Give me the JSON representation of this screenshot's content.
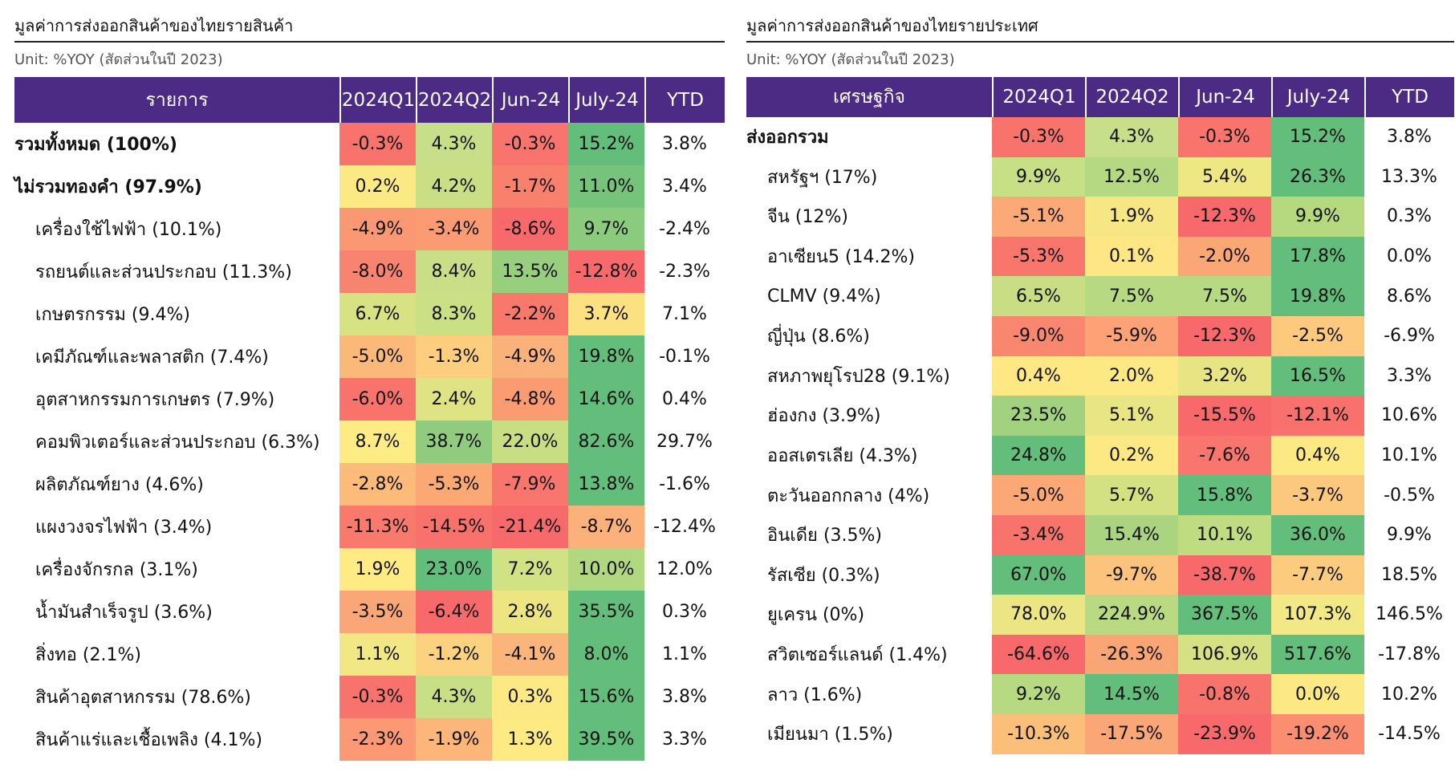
{
  "left": {
    "title": "มูลค่าการส่งออกสินค้าของไทยรายสินค้า",
    "unit": "Unit: %YOY (สัดส่วนในปี 2023)",
    "headers": [
      "รายการ",
      "2024Q1",
      "2024Q2",
      "Jun-24",
      "July-24",
      "YTD"
    ],
    "rows": [
      {
        "label": "รวมทั้งหมด (100%)",
        "bold": true,
        "values": [
          "-0.3%",
          "4.3%",
          "-0.3%",
          "15.2%"
        ],
        "ytd": "3.8%"
      },
      {
        "label": "ไม่รวมทองคำ (97.9%)",
        "bold": true,
        "values": [
          "0.2%",
          "4.2%",
          "-1.7%",
          "11.0%"
        ],
        "ytd": "3.4%"
      },
      {
        "label": "เครื่องใช้ไฟฟ้า (10.1%)",
        "values": [
          "-4.9%",
          "-3.4%",
          "-8.6%",
          "9.7%"
        ],
        "ytd": "-2.4%"
      },
      {
        "label": "รถยนต์และส่วนประกอบ (11.3%)",
        "values": [
          "-8.0%",
          "8.4%",
          "13.5%",
          "-12.8%"
        ],
        "ytd": "-2.3%"
      },
      {
        "label": "เกษตรกรรม (9.4%)",
        "values": [
          "6.7%",
          "8.3%",
          "-2.2%",
          "3.7%"
        ],
        "ytd": "7.1%"
      },
      {
        "label": "เคมีภัณฑ์และพลาสติก (7.4%)",
        "values": [
          "-5.0%",
          "-1.3%",
          "-4.9%",
          "19.8%"
        ],
        "ytd": "-0.1%"
      },
      {
        "label": "อุตสาหกรรมการเกษตร (7.9%)",
        "values": [
          "-6.0%",
          "2.4%",
          "-4.8%",
          "14.6%"
        ],
        "ytd": "0.4%"
      },
      {
        "label": "คอมพิวเตอร์และส่วนประกอบ (6.3%)",
        "values": [
          "8.7%",
          "38.7%",
          "22.0%",
          "82.6%"
        ],
        "ytd": "29.7%"
      },
      {
        "label": "ผลิตภัณฑ์ยาง (4.6%)",
        "values": [
          "-2.8%",
          "-5.3%",
          "-7.9%",
          "13.8%"
        ],
        "ytd": "-1.6%"
      },
      {
        "label": "แผงวงจรไฟฟ้า (3.4%)",
        "values": [
          "-11.3%",
          "-14.5%",
          "-21.4%",
          "-8.7%"
        ],
        "ytd": "-12.4%"
      },
      {
        "label": "เครื่องจักรกล (3.1%)",
        "values": [
          "1.9%",
          "23.0%",
          "7.2%",
          "10.0%"
        ],
        "ytd": "12.0%"
      },
      {
        "label": "น้ำมันสำเร็จรูป (3.6%)",
        "values": [
          "-3.5%",
          "-6.4%",
          "2.8%",
          "35.5%"
        ],
        "ytd": "0.3%"
      },
      {
        "label": "สิ่งทอ (2.1%)",
        "values": [
          "1.1%",
          "-1.2%",
          "-4.1%",
          "8.0%"
        ],
        "ytd": "1.1%"
      },
      {
        "label": "สินค้าอุตสาหกรรม (78.6%)",
        "values": [
          "-0.3%",
          "4.3%",
          "0.3%",
          "15.6%"
        ],
        "ytd": "3.8%"
      },
      {
        "label": "สินค้าแร่และเชื้อเพลิง (4.1%)",
        "values": [
          "-2.3%",
          "-1.9%",
          "1.3%",
          "39.5%"
        ],
        "ytd": "3.3%"
      }
    ],
    "colors": [
      [
        "#f8736b",
        "#c6df88",
        "#f8746c",
        "#64be7b"
      ],
      [
        "#fbe983",
        "#cadf85",
        "#f8806d",
        "#76c47c"
      ],
      [
        "#f99873",
        "#fb9b74",
        "#f8696b",
        "#8bcb7e"
      ],
      [
        "#f8836e",
        "#c9de86",
        "#98cf7f",
        "#f8696b"
      ],
      [
        "#d7e282",
        "#cbdf85",
        "#f8796c",
        "#fbe17f"
      ],
      [
        "#fbb979",
        "#fcce7e",
        "#fbb27a",
        "#63be7b"
      ],
      [
        "#f8736b",
        "#e0e383",
        "#fa9b72",
        "#63be7b"
      ],
      [
        "#fdec84",
        "#91cc7e",
        "#c9de83",
        "#63be7b"
      ],
      [
        "#fcbb79",
        "#fca874",
        "#f8766d",
        "#63be7b"
      ],
      [
        "#f9796c",
        "#f8716b",
        "#f8696b",
        "#fcb07a"
      ],
      [
        "#feeb84",
        "#63be7b",
        "#d1e284",
        "#b1d781"
      ],
      [
        "#fba676",
        "#f8696b",
        "#ece582",
        "#63be7b"
      ],
      [
        "#f1e784",
        "#fcd17f",
        "#fbb479",
        "#63be7b"
      ],
      [
        "#f8736b",
        "#c8df85",
        "#fce983",
        "#63be7b"
      ],
      [
        "#fc9974",
        "#fdb67a",
        "#feea83",
        "#63be7b"
      ]
    ]
  },
  "right": {
    "title": "มูลค่าการส่งออกสินค้าของไทยรายประเทศ",
    "unit": "Unit: %YOY (สัดส่วนในปี 2023)",
    "headers": [
      "เศรษฐกิจ",
      "2024Q1",
      "2024Q2",
      "Jun-24",
      "July-24",
      "YTD"
    ],
    "rows": [
      {
        "label": "ส่งออกรวม",
        "bold": true,
        "values": [
          "-0.3%",
          "4.3%",
          "-0.3%",
          "15.2%"
        ],
        "ytd": "3.8%"
      },
      {
        "label": "สหรัฐฯ (17%)",
        "values": [
          "9.9%",
          "12.5%",
          "5.4%",
          "26.3%"
        ],
        "ytd": "13.3%"
      },
      {
        "label": "จีน (12%)",
        "values": [
          "-5.1%",
          "1.9%",
          "-12.3%",
          "9.9%"
        ],
        "ytd": "0.3%"
      },
      {
        "label": "อาเซียน5 (14.2%)",
        "values": [
          "-5.3%",
          "0.1%",
          "-2.0%",
          "17.8%"
        ],
        "ytd": "0.0%"
      },
      {
        "label": "CLMV (9.4%)",
        "values": [
          "6.5%",
          "7.5%",
          "7.5%",
          "19.8%"
        ],
        "ytd": "8.6%"
      },
      {
        "label": "ญี่ปุ่น (8.6%)",
        "values": [
          "-9.0%",
          "-5.9%",
          "-12.3%",
          "-2.5%"
        ],
        "ytd": "-6.9%"
      },
      {
        "label": "สหภาพยุโรป28 (9.1%)",
        "values": [
          "0.4%",
          "2.0%",
          "3.2%",
          "16.5%"
        ],
        "ytd": "3.3%"
      },
      {
        "label": "ฮ่องกง (3.9%)",
        "values": [
          "23.5%",
          "5.1%",
          "-15.5%",
          "-12.1%"
        ],
        "ytd": "10.6%"
      },
      {
        "label": "ออสเตรเลีย (4.3%)",
        "values": [
          "24.8%",
          "0.2%",
          "-7.6%",
          "0.4%"
        ],
        "ytd": "10.1%"
      },
      {
        "label": "ตะวันออกกลาง (4%)",
        "values": [
          "-5.0%",
          "5.7%",
          "15.8%",
          "-3.7%"
        ],
        "ytd": "-0.5%"
      },
      {
        "label": "อินเดีย (3.5%)",
        "values": [
          "-3.4%",
          "15.4%",
          "10.1%",
          "36.0%"
        ],
        "ytd": "9.9%"
      },
      {
        "label": "รัสเซีย (0.3%)",
        "values": [
          "67.0%",
          "-9.7%",
          "-38.7%",
          "-7.7%"
        ],
        "ytd": "18.5%"
      },
      {
        "label": "ยูเครน (0%)",
        "values": [
          "78.0%",
          "224.9%",
          "367.5%",
          "107.3%"
        ],
        "ytd": "146.5%"
      },
      {
        "label": "สวิตเซอร์แลนด์ (1.4%)",
        "values": [
          "-64.6%",
          "-26.3%",
          "106.9%",
          "517.6%"
        ],
        "ytd": "-17.8%"
      },
      {
        "label": "ลาว (1.6%)",
        "values": [
          "9.2%",
          "14.5%",
          "-0.8%",
          "0.0%"
        ],
        "ytd": "10.2%"
      },
      {
        "label": "เมียนมา (1.5%)",
        "values": [
          "-10.3%",
          "-17.5%",
          "-23.9%",
          "-19.2%"
        ],
        "ytd": "-14.5%"
      }
    ],
    "colors": [
      [
        "#f8736b",
        "#c6df88",
        "#f8746c",
        "#64be7b"
      ],
      [
        "#c7df85",
        "#b4d982",
        "#efe684",
        "#63be7b"
      ],
      [
        "#fbaa77",
        "#f6e784",
        "#f8696b",
        "#b6d980"
      ],
      [
        "#f8766c",
        "#fde683",
        "#fba675",
        "#63be7b"
      ],
      [
        "#c9de84",
        "#b7d982",
        "#b6d982",
        "#63be7b"
      ],
      [
        "#f9866f",
        "#fca276",
        "#f8696b",
        "#fcc97d"
      ],
      [
        "#fee883",
        "#fde983",
        "#e6e483",
        "#63be7b"
      ],
      [
        "#a2d27f",
        "#e8e584",
        "#f8696b",
        "#f8716c"
      ],
      [
        "#63be7b",
        "#fde983",
        "#f8766d",
        "#fce983"
      ],
      [
        "#fba876",
        "#d3e182",
        "#63be7b",
        "#fcc87d"
      ],
      [
        "#f8736b",
        "#abd480",
        "#c0dc81",
        "#63be7b"
      ],
      [
        "#63be7b",
        "#fcc37c",
        "#f8696b",
        "#fccc7e"
      ],
      [
        "#ebe683",
        "#b9da83",
        "#63be7b",
        "#f2e885"
      ],
      [
        "#f8696b",
        "#faa574",
        "#d5e183",
        "#63be7b"
      ],
      [
        "#b7d982",
        "#63be7b",
        "#f8736b",
        "#fde983"
      ],
      [
        "#fbbf7a",
        "#fba676",
        "#f8696b",
        "#fb8d71"
      ]
    ]
  }
}
